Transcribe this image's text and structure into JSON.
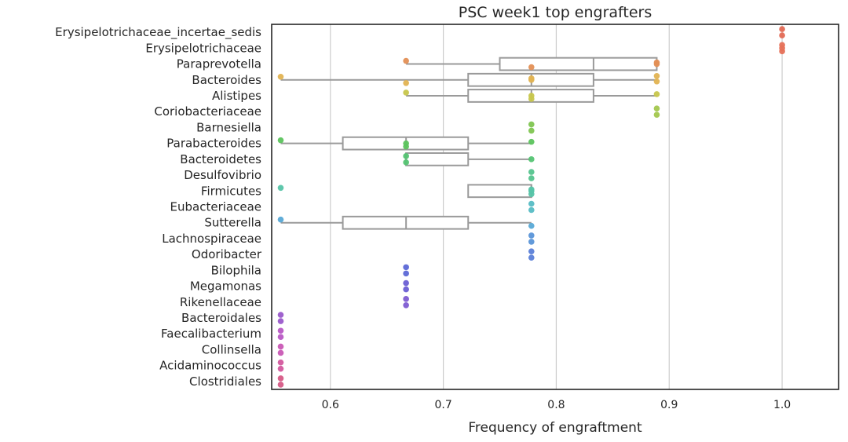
{
  "chart_data": {
    "type": "box+strip",
    "title": "PSC week1 top engrafters",
    "xlabel": "Frequency of engraftment",
    "ylabel": "",
    "xlim": [
      0.548,
      1.05
    ],
    "xticks": [
      "0.6",
      "0.7",
      "0.8",
      "0.9",
      "1.0"
    ],
    "grid": true,
    "categories": [
      {
        "name": "Erysipelotrichaceae_incertae_sedis",
        "color": "#e36a55",
        "points": [
          1.0,
          1.0
        ],
        "box": null
      },
      {
        "name": "Erysipelotrichaceae",
        "color": "#e67158",
        "points": [
          1.0,
          1.0,
          1.0
        ],
        "box": null
      },
      {
        "name": "Paraprevotella",
        "color": "#e38f55",
        "points": [
          0.667,
          0.778,
          0.889,
          0.889
        ],
        "box": {
          "whislo": 0.667,
          "q1": 0.75,
          "med": 0.833,
          "q3": 0.889,
          "whishi": 0.889
        }
      },
      {
        "name": "Bacteroides",
        "color": "#e2b352",
        "points": [
          0.556,
          0.667,
          0.778,
          0.778,
          0.889,
          0.889
        ],
        "box": {
          "whislo": 0.556,
          "q1": 0.722,
          "med": 0.778,
          "q3": 0.833,
          "whishi": 0.889
        }
      },
      {
        "name": "Alistipes",
        "color": "#c7c64c",
        "points": [
          0.667,
          0.778,
          0.778,
          0.889
        ],
        "box": {
          "whislo": 0.667,
          "q1": 0.722,
          "med": 0.778,
          "q3": 0.833,
          "whishi": 0.889
        }
      },
      {
        "name": "Coriobacteriaceae",
        "color": "#a3c74e",
        "points": [
          0.889,
          0.889
        ],
        "box": null
      },
      {
        "name": "Barnesiella",
        "color": "#7fc551",
        "points": [
          0.778,
          0.778
        ],
        "box": null
      },
      {
        "name": "Parabacteroides",
        "color": "#5cc45d",
        "points": [
          0.556,
          0.667,
          0.667,
          0.778
        ],
        "box": {
          "whislo": 0.556,
          "q1": 0.611,
          "med": 0.667,
          "q3": 0.722,
          "whishi": 0.778
        }
      },
      {
        "name": "Bacteroidetes",
        "color": "#55c473",
        "points": [
          0.667,
          0.667,
          0.778
        ],
        "box": {
          "whislo": 0.667,
          "q1": 0.667,
          "med": 0.667,
          "q3": 0.722,
          "whishi": 0.778
        }
      },
      {
        "name": "Desulfovibrio",
        "color": "#55c48e",
        "points": [
          0.778,
          0.778
        ],
        "box": null
      },
      {
        "name": "Firmicutes",
        "color": "#56c4a8",
        "points": [
          0.556,
          0.778,
          0.778,
          0.778
        ],
        "box": {
          "whislo": 0.722,
          "q1": 0.722,
          "med": 0.778,
          "q3": 0.778,
          "whishi": 0.778
        }
      },
      {
        "name": "Eubacteriaceae",
        "color": "#56bcc4",
        "points": [
          0.778,
          0.778
        ],
        "box": null
      },
      {
        "name": "Sutterella",
        "color": "#58a9d6",
        "points": [
          0.556,
          0.778
        ],
        "box": {
          "whislo": 0.556,
          "q1": 0.611,
          "med": 0.667,
          "q3": 0.722,
          "whishi": 0.778
        }
      },
      {
        "name": "Lachnospiraceae",
        "color": "#5a95d8",
        "points": [
          0.778,
          0.778
        ],
        "box": null
      },
      {
        "name": "Odoribacter",
        "color": "#5b7fd8",
        "points": [
          0.778,
          0.778
        ],
        "box": null
      },
      {
        "name": "Bilophila",
        "color": "#5c68d6",
        "points": [
          0.667,
          0.667
        ],
        "box": null
      },
      {
        "name": "Megamonas",
        "color": "#6a5ed4",
        "points": [
          0.667,
          0.667
        ],
        "box": null
      },
      {
        "name": "Rikenellaceae",
        "color": "#7e5cd2",
        "points": [
          0.667,
          0.667
        ],
        "box": null
      },
      {
        "name": "Bacteroidales",
        "color": "#9a5acb",
        "points": [
          0.556,
          0.556
        ],
        "box": null
      },
      {
        "name": "Faecalibacterium",
        "color": "#b858c5",
        "points": [
          0.556,
          0.556
        ],
        "box": null
      },
      {
        "name": "Collinsella",
        "color": "#c958b5",
        "points": [
          0.556,
          0.556
        ],
        "box": null
      },
      {
        "name": "Acidaminococcus",
        "color": "#d3589e",
        "points": [
          0.556,
          0.556
        ],
        "box": null
      },
      {
        "name": "Clostridiales",
        "color": "#d65a86",
        "points": [
          0.556,
          0.556
        ],
        "box": null
      }
    ]
  }
}
